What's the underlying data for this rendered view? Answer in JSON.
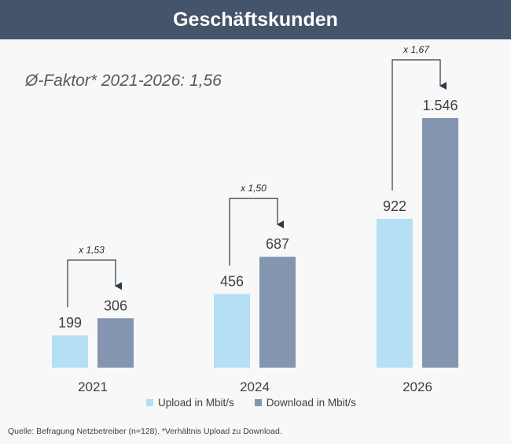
{
  "header": {
    "title": "Geschäftskunden"
  },
  "overall_factor": "Ø-Faktor* 2021-2026: 1,56",
  "source_note": "Quelle: Befragung Netzbetreiber (n=128). *Verhältnis Upload zu Download.",
  "colors": {
    "header_bg": "#44546a",
    "upload": "#b4dff5",
    "download": "#8495b0"
  },
  "chart_data": {
    "type": "bar",
    "categories": [
      "2021",
      "2024",
      "2026"
    ],
    "series": [
      {
        "name": "Upload in Mbit/s",
        "values": [
          199,
          456,
          922
        ],
        "labels": [
          "199",
          "456",
          "922"
        ]
      },
      {
        "name": "Download in Mbit/s",
        "values": [
          306,
          687,
          1546
        ],
        "labels": [
          "306",
          "687",
          "1.546"
        ]
      }
    ],
    "factors": [
      "x 1,53",
      "x 1,50",
      "x 1,67"
    ],
    "ylim": [
      0,
      1546
    ],
    "grid": false,
    "legend_position": "bottom"
  }
}
